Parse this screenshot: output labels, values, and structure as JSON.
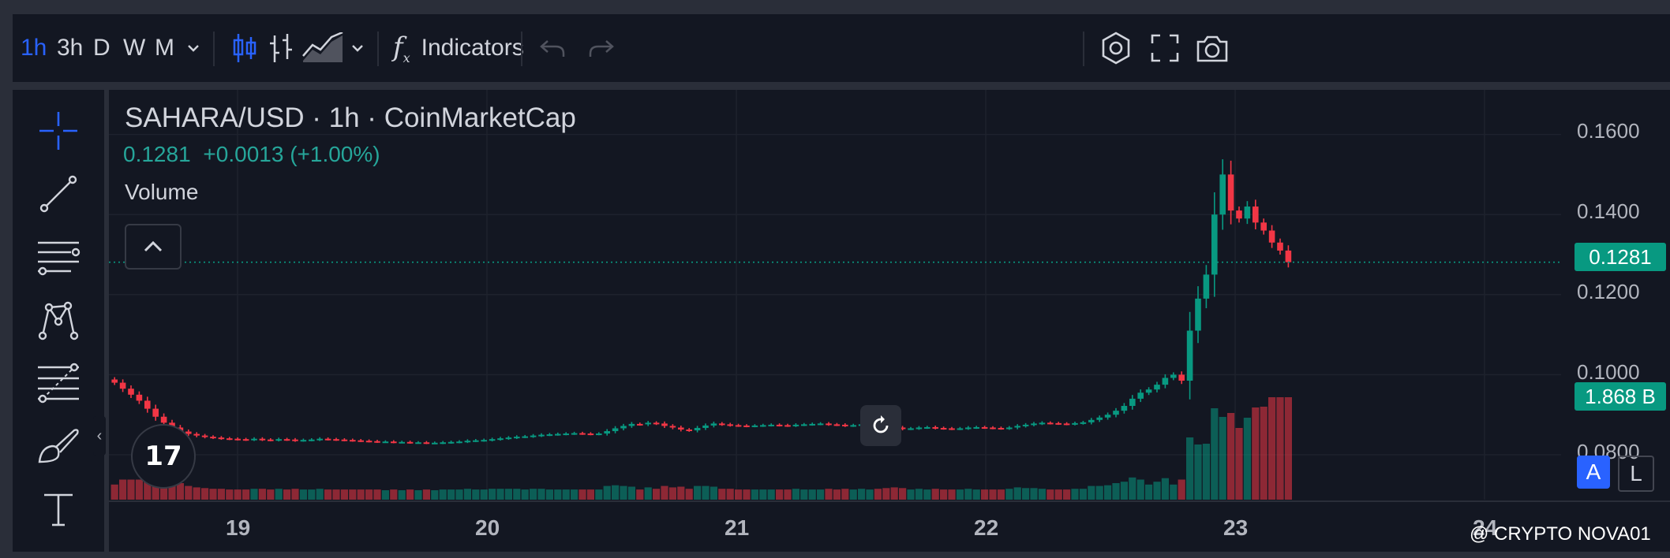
{
  "toolbar": {
    "intervals": [
      "1h",
      "3h",
      "D",
      "W",
      "M"
    ],
    "active_interval": "1h",
    "indicators_label": "Indicators",
    "fx_symbol": "f"
  },
  "legend": {
    "title": "SAHARA/USD · 1h · CoinMarketCap",
    "price": "0.1281",
    "change": "+0.0013 (+1.00%)",
    "volume_label": "Volume"
  },
  "price_axis": {
    "ticks": [
      "0.1600",
      "0.1400",
      "0.1200",
      "0.1000",
      "0.0800"
    ],
    "last_price": "0.1281",
    "last_volume": "1.868 B"
  },
  "time_axis": {
    "labels": [
      "19",
      "20",
      "21",
      "22",
      "23",
      "24"
    ]
  },
  "scale_buttons": {
    "auto": "A",
    "log": "L"
  },
  "logo_text": "17",
  "watermark": "@ CRYPTO NOVA01",
  "colors": {
    "up": "#089981",
    "down": "#f23645",
    "active": "#2962ff",
    "background": "#131722"
  },
  "icons": {
    "toolbar": [
      "chevron-down-icon",
      "candlestick-icon",
      "bar-chart-icon",
      "area-chart-icon",
      "undo-icon",
      "redo-icon",
      "settings-icon",
      "fullscreen-icon",
      "camera-icon"
    ],
    "sidebar": [
      "crosshair-icon",
      "trendline-icon",
      "horizontal-lines-icon",
      "pattern-icon",
      "fib-icon",
      "brush-icon",
      "text-icon"
    ]
  },
  "chart_data": {
    "type": "candlestick",
    "x_labels": [
      "19",
      "20",
      "21",
      "22",
      "23",
      "24"
    ],
    "ylim": [
      0.076,
      0.164
    ],
    "y_ticks": [
      0.08,
      0.1,
      0.12,
      0.14,
      0.16
    ],
    "last_price": 0.1281,
    "grid": true,
    "close": [
      0.098,
      0.0965,
      0.095,
      0.0935,
      0.0915,
      0.0895,
      0.088,
      0.0868,
      0.0858,
      0.0852,
      0.0848,
      0.0845,
      0.0843,
      0.0841,
      0.084,
      0.0839,
      0.0838,
      0.084,
      0.0838,
      0.0837,
      0.0839,
      0.0838,
      0.0836,
      0.0837,
      0.0838,
      0.084,
      0.0839,
      0.0838,
      0.0837,
      0.0836,
      0.0835,
      0.0834,
      0.0833,
      0.0833,
      0.0832,
      0.0832,
      0.0831,
      0.0831,
      0.083,
      0.083,
      0.0831,
      0.0832,
      0.0833,
      0.0835,
      0.0836,
      0.0837,
      0.0839,
      0.0841,
      0.0843,
      0.0845,
      0.0846,
      0.0848,
      0.085,
      0.0851,
      0.0852,
      0.0853,
      0.0854,
      0.0853,
      0.0852,
      0.0853,
      0.0859,
      0.0866,
      0.0872,
      0.0877,
      0.0876,
      0.088,
      0.0878,
      0.0872,
      0.0868,
      0.0863,
      0.0861,
      0.0867,
      0.0873,
      0.0878,
      0.0876,
      0.0874,
      0.0873,
      0.0872,
      0.0873,
      0.0874,
      0.0875,
      0.0874,
      0.0873,
      0.0875,
      0.0876,
      0.0877,
      0.0878,
      0.0876,
      0.0875,
      0.0873,
      0.0874,
      0.0876,
      0.0877,
      0.0875,
      0.0872,
      0.0868,
      0.0865,
      0.0866,
      0.0868,
      0.0869,
      0.0867,
      0.0866,
      0.0865,
      0.0866,
      0.0868,
      0.0869,
      0.0868,
      0.0867,
      0.0866,
      0.0868,
      0.0872,
      0.0875,
      0.0878,
      0.088,
      0.0879,
      0.0878,
      0.0877,
      0.0879,
      0.0881,
      0.0887,
      0.0893,
      0.09,
      0.091,
      0.0922,
      0.094,
      0.0955,
      0.0963,
      0.0975,
      0.0992,
      0.1,
      0.0985,
      0.111,
      0.119,
      0.125,
      0.14,
      0.15,
      0.141,
      0.139,
      0.142,
      0.138,
      0.136,
      0.133,
      0.131,
      0.1281
    ]
  }
}
